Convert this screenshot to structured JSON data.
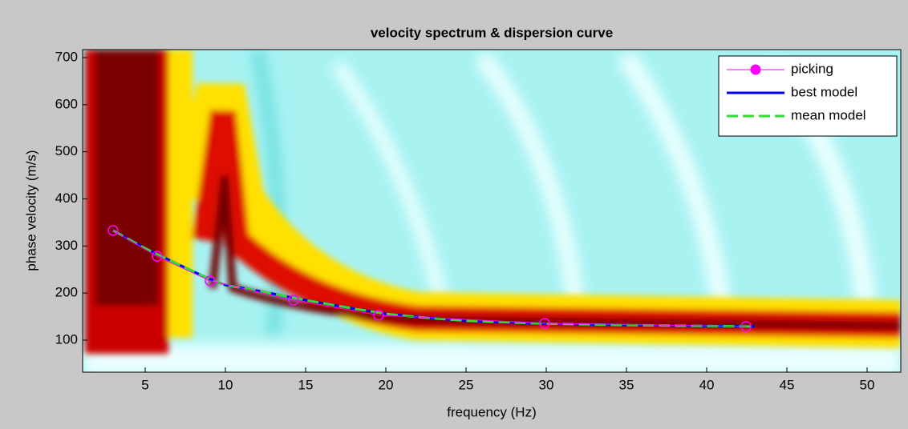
{
  "chart_data": {
    "type": "line",
    "title": "velocity spectrum & dispersion curve",
    "x_label": "frequency (Hz)",
    "y_label": "phase velocity (m/s)",
    "xlim": [
      1.1,
      52.1
    ],
    "ylim": [
      32,
      717
    ],
    "xticks": [
      5,
      10,
      15,
      20,
      25,
      30,
      35,
      40,
      45,
      50
    ],
    "yticks": [
      100,
      200,
      300,
      400,
      500,
      600,
      700
    ],
    "legend": "upper right",
    "series": [
      {
        "name": "picking",
        "color": "#ff00ff",
        "marker": "circle",
        "line_style": "solid",
        "x": [
          3.0,
          5.75,
          9.05,
          14.25,
          19.55,
          29.9,
          42.45
        ],
        "values": [
          333,
          278,
          226,
          185,
          153,
          136,
          129
        ]
      },
      {
        "name": "best model",
        "color": "#0000ff",
        "marker": "none",
        "line_style": "solid",
        "x": [
          3,
          5,
          7,
          9,
          10,
          12,
          15,
          18,
          20,
          22,
          25,
          30,
          35,
          40,
          43
        ],
        "values": [
          333,
          295,
          262,
          230,
          217,
          205,
          185,
          167,
          156,
          149,
          141,
          135,
          132,
          130,
          129
        ]
      },
      {
        "name": "mean model",
        "color": "#33dd33",
        "marker": "none",
        "line_style": "dashed",
        "x": [
          3,
          5,
          7,
          9,
          10,
          12,
          15,
          18,
          20,
          22,
          25,
          30,
          35,
          40,
          43
        ],
        "values": [
          333,
          295,
          262,
          230,
          217,
          205,
          185,
          167,
          156,
          149,
          141,
          135,
          132,
          130,
          129
        ]
      }
    ]
  }
}
